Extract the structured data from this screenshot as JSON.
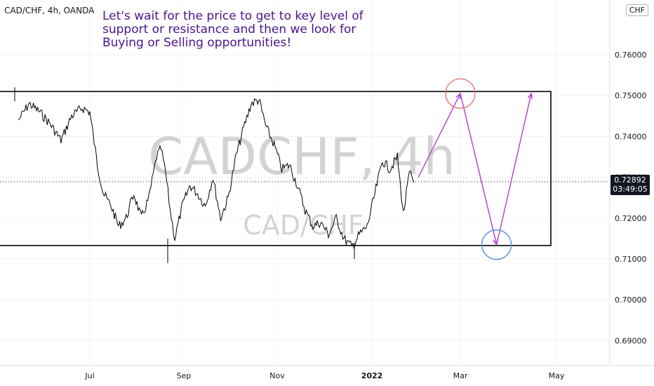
{
  "chart_data": {
    "type": "line",
    "title": "CAD/CHF, 4h, OANDA",
    "symbol": "CAD/CHF",
    "interval": "4h",
    "exchange": "OANDA",
    "watermark": {
      "main": "CADCHF, 4h",
      "sub": "CAD/CHF"
    },
    "annotation": "Let's wait for the price to get to key level of support or resistance and then we look for Buying or Selling opportunities!",
    "currency_button": "CHF",
    "ylim": [
      0.685,
      0.765
    ],
    "y_ticks": [
      0.69,
      0.7,
      0.71,
      0.72,
      0.73,
      0.74,
      0.75,
      0.76
    ],
    "y_tick_labels": [
      "0.69000",
      "0.70000",
      "0.71000",
      "0.72000",
      "0.73000",
      "0.74000",
      "0.75000",
      "0.76000"
    ],
    "x_tick_labels": [
      "Jul",
      "Sep",
      "Nov",
      "2022",
      "Mar",
      "May"
    ],
    "last_price": "0.72892",
    "countdown": "03:49:05",
    "range_box": {
      "top": 0.751,
      "bottom": 0.7133
    },
    "series": [
      {
        "x": [
          "2021-05-15",
          "2021-05-22",
          "2021-05-29",
          "2021-06-05",
          "2021-06-12",
          "2021-06-19",
          "2021-06-26",
          "2021-07-01",
          "2021-07-06",
          "2021-07-10",
          "2021-07-15",
          "2021-07-20",
          "2021-07-25",
          "2021-07-30",
          "2021-08-04",
          "2021-08-09",
          "2021-08-14",
          "2021-08-17",
          "2021-08-20",
          "2021-08-23",
          "2021-08-26",
          "2021-08-31",
          "2021-09-05",
          "2021-09-10",
          "2021-09-15",
          "2021-09-20",
          "2021-09-25",
          "2021-09-30",
          "2021-10-05",
          "2021-10-10",
          "2021-10-15",
          "2021-10-20",
          "2021-10-25",
          "2021-10-30",
          "2021-11-04",
          "2021-11-09",
          "2021-11-14",
          "2021-11-19",
          "2021-11-24",
          "2021-11-29",
          "2021-12-04",
          "2021-12-09",
          "2021-12-14",
          "2021-12-19",
          "2021-12-24",
          "2021-12-29",
          "2022-01-03",
          "2022-01-08",
          "2022-01-13",
          "2022-01-18",
          "2022-01-22",
          "2022-01-26",
          "2022-01-29"
        ],
        "values": [
          0.744,
          0.748,
          0.746,
          0.743,
          0.739,
          0.745,
          0.747,
          0.746,
          0.733,
          0.726,
          0.723,
          0.718,
          0.72,
          0.726,
          0.72,
          0.725,
          0.735,
          0.737,
          0.731,
          0.722,
          0.715,
          0.723,
          0.728,
          0.726,
          0.723,
          0.73,
          0.72,
          0.725,
          0.735,
          0.742,
          0.748,
          0.749,
          0.742,
          0.738,
          0.732,
          0.733,
          0.728,
          0.722,
          0.718,
          0.719,
          0.716,
          0.72,
          0.715,
          0.713,
          0.716,
          0.718,
          0.726,
          0.734,
          0.732,
          0.735,
          0.721,
          0.731,
          0.7289
        ],
        "high": 0.752,
        "low": 0.709
      }
    ],
    "projection": {
      "points": [
        [
          "2022-02-01",
          0.73
        ],
        [
          "2022-03-01",
          0.7505
        ],
        [
          "2022-03-24",
          0.7135
        ],
        [
          "2022-04-15",
          0.7505
        ]
      ],
      "circles": [
        {
          "x": "2022-03-01",
          "y": 0.7505,
          "color": "#e57373"
        },
        {
          "x": "2022-03-24",
          "y": 0.7135,
          "color": "#5c8ee0"
        }
      ]
    },
    "grid": true,
    "colors": {
      "candles": "#000000",
      "box": "#000000",
      "projection": "#b040c8",
      "watermark": "#d0d0d0",
      "annotation": "#4a148c",
      "price_tag": "#131722"
    }
  }
}
